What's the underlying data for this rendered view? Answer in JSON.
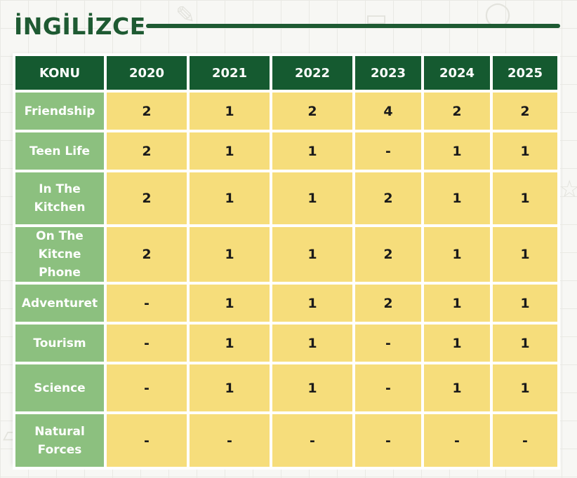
{
  "title": "İNGİLİZCE",
  "table": {
    "header": [
      "KONU",
      "2020",
      "2021",
      "2022",
      "2023",
      "2024",
      "2025"
    ],
    "rows": [
      {
        "topic": "Friendship",
        "values": [
          "2",
          "1",
          "2",
          "4",
          "2",
          "2"
        ]
      },
      {
        "topic": "Teen Life",
        "values": [
          "2",
          "1",
          "1",
          "-",
          "1",
          "1"
        ]
      },
      {
        "topic": "In The\nKitchen",
        "values": [
          "2",
          "1",
          "1",
          "2",
          "1",
          "1"
        ]
      },
      {
        "topic": "On The Kitcne\nPhone",
        "values": [
          "2",
          "1",
          "1",
          "2",
          "1",
          "1"
        ]
      },
      {
        "topic": "Adventuret",
        "values": [
          "-",
          "1",
          "1",
          "2",
          "1",
          "1"
        ]
      },
      {
        "topic": "Tourism",
        "values": [
          "-",
          "1",
          "1",
          "-",
          "1",
          "1"
        ]
      },
      {
        "topic": "Science",
        "values": [
          "-",
          "1",
          "1",
          "-",
          "1",
          "1"
        ]
      },
      {
        "topic": "Natural\nForces",
        "values": [
          "-",
          "-",
          "-",
          "-",
          "-",
          "-"
        ]
      }
    ]
  },
  "colors": {
    "header_bg": "#155a30",
    "topic_bg": "#8cc07f",
    "value_bg": "#f6dd7b",
    "title": "#1e5a32"
  }
}
